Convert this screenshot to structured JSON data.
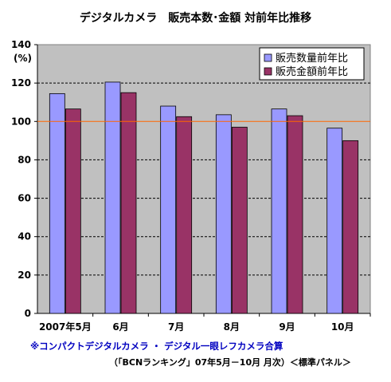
{
  "chart_data": {
    "type": "bar",
    "title": "デジタルカメラ　販売本数･金額 対前年比推移",
    "ylabel": "(%)",
    "ylim": [
      0,
      140
    ],
    "yticks": [
      0,
      20,
      40,
      60,
      80,
      100,
      120,
      140
    ],
    "categories": [
      "2007年5月",
      "6月",
      "7月",
      "8月",
      "9月",
      "10月"
    ],
    "series": [
      {
        "name": "販売数量前年比",
        "color": "#9999ff",
        "values": [
          114.5,
          120.5,
          108,
          103.5,
          106.5,
          96.5
        ]
      },
      {
        "name": "販売金額前年比",
        "color": "#993366",
        "values": [
          106.5,
          115,
          102.5,
          97,
          103,
          90
        ]
      }
    ],
    "reference_line": {
      "value": 100,
      "color": "#ff6600"
    },
    "grid": true,
    "gridlines_dashed_at": [
      20,
      40,
      60,
      80,
      120
    ],
    "legend": "top-right",
    "plot_background": "#c0c0c0"
  },
  "footnote": "※コンパクトデジタルカメラ ・ デジタル一眼レフカメラ合算",
  "source": "（「BCNランキング」07年5月－10月 月次）＜標準パネル＞"
}
